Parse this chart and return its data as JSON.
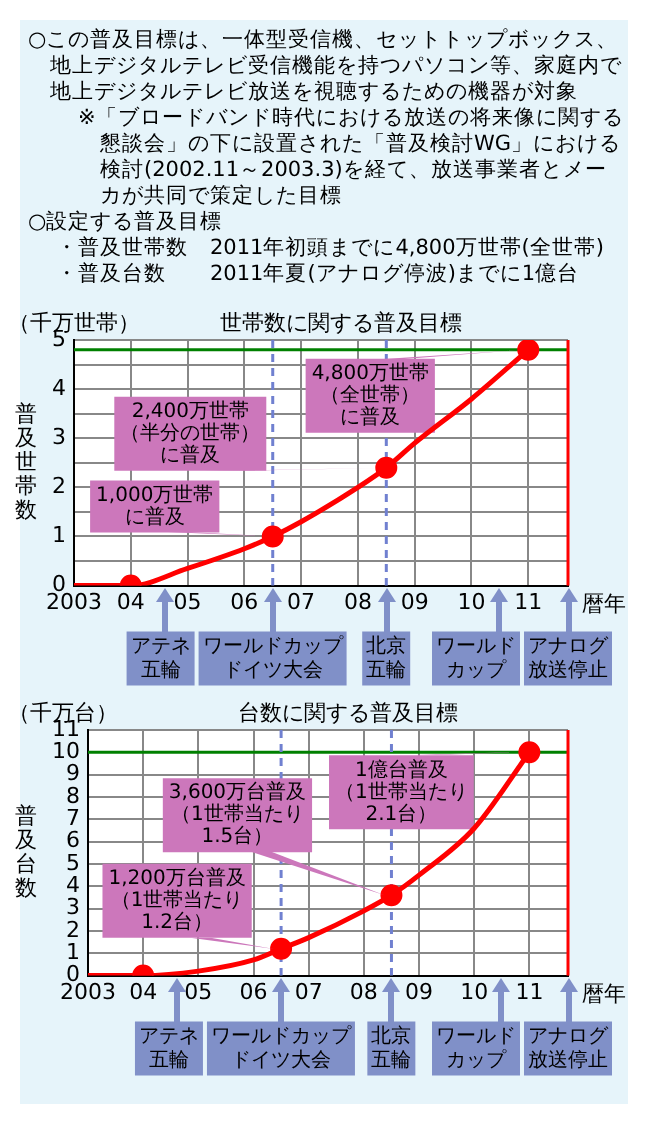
{
  "chart_data": [
    {
      "type": "other",
      "annotations": [
        "○この普及目標は、一体型受信機、セットトップボックス、地上デジタルテレビ受信機能を持つパソコン等、家庭内で地上デジタルテレビ放送を視聴するための機器が対象",
        "※「ブロードバンド時代における放送の将来像に関する懇談会」の下に設置された「普及検討WG」における検討(2002.11～2003.3)を経て、放送事業者とメーカが共同で策定した目標",
        "○設定する普及目標",
        "・普及世帯数　2011年初頭までに4,800万世帯(全世帯)",
        "・普及台数　　2011年夏(アナログ停波)までに1億台"
      ]
    },
    {
      "type": "line",
      "title": "世帯数に関する普及目標",
      "ylabel": "普及世帯数",
      "xlabel": "暦年",
      "xlim": [
        2003,
        2011.7
      ],
      "xticks": [
        {
          "value": 2003,
          "label": "2003"
        },
        {
          "value": 2004,
          "label": "04"
        },
        {
          "value": 2005,
          "label": "05"
        },
        {
          "value": 2006,
          "label": "06"
        },
        {
          "value": 2007,
          "label": "07"
        },
        {
          "value": 2008,
          "label": "08"
        },
        {
          "value": 2009,
          "label": "09"
        },
        {
          "value": 2010,
          "label": "10"
        },
        {
          "value": 2011,
          "label": "11"
        }
      ],
      "ylim": [
        0,
        5
      ],
      "yticks": [
        0,
        {
          "value": 0.5,
          "label": null
        },
        1,
        {
          "value": 1.5,
          "label": null
        },
        2,
        {
          "value": 2.5,
          "label": null
        },
        3,
        {
          "value": 3.5,
          "label": null
        },
        4,
        {
          "value": 4.5,
          "label": null
        },
        5
      ],
      "grid": true,
      "legend": false,
      "series": [
        {
          "type": "line",
          "color": "#ff0000",
          "marker": "none",
          "x": [
            2003,
            2004,
            2005,
            2006,
            2006.5,
            2007,
            2008,
            2008.5,
            2009,
            2010,
            2011
          ],
          "values": [
            0,
            0,
            0.35,
            0.75,
            1.0,
            1.3,
            2.0,
            2.4,
            2.9,
            3.8,
            4.8
          ]
        },
        {
          "type": "scatter",
          "color": "#ff0000",
          "marker": "circle",
          "x": [
            2004,
            2006.5,
            2008.5,
            2011
          ],
          "values": [
            0,
            1,
            2.4,
            4.8
          ]
        }
      ],
      "ref_lines": [
        {
          "axis": "y",
          "value": 4.8,
          "color": "#008000"
        },
        {
          "axis": "x",
          "value": 2006.5,
          "color": "#7080d0",
          "line_style": "dashed"
        },
        {
          "axis": "x",
          "value": 2008.5,
          "color": "#7080d0",
          "line_style": "dashed"
        },
        {
          "axis": "x",
          "value": 2011.7,
          "color": "#ff0000"
        }
      ],
      "annotations": [
        "（千万世帯）",
        {
          "text": "1,000万世帯に普及",
          "x": 2006.5,
          "y": 1
        },
        {
          "text": "2,400万世帯（半分の世帯）に普及",
          "x": 2008.5,
          "y": 2.4
        },
        {
          "text": "4,800万世帯（全世帯）に普及",
          "x": 2011,
          "y": 4.8
        },
        "アテネ五輪",
        "ワールドカップドイツ大会",
        "北京五輪",
        "ワールドカップ",
        "アナログ放送停止"
      ]
    },
    {
      "type": "line",
      "title": "台数に関する普及目標",
      "ylabel": "普及台数",
      "xlabel": "暦年",
      "xlim": [
        2003,
        2011.7
      ],
      "xticks": [
        {
          "value": 2003,
          "label": "2003"
        },
        {
          "value": 2004,
          "label": "04"
        },
        {
          "value": 2005,
          "label": "05"
        },
        {
          "value": 2006,
          "label": "06"
        },
        {
          "value": 2007,
          "label": "07"
        },
        {
          "value": 2008,
          "label": "08"
        },
        {
          "value": 2009,
          "label": "09"
        },
        {
          "value": 2010,
          "label": "10"
        },
        {
          "value": 2011,
          "label": "11"
        }
      ],
      "ylim": [
        0,
        11
      ],
      "yticks": [
        0,
        1,
        2,
        3,
        4,
        5,
        6,
        7,
        8,
        9,
        10,
        11
      ],
      "grid": true,
      "legend": false,
      "series": [
        {
          "type": "line",
          "color": "#ff0000",
          "marker": "none",
          "x": [
            2003,
            2004,
            2005,
            2006,
            2006.5,
            2007,
            2008,
            2008.5,
            2009,
            2010,
            2011
          ],
          "values": [
            0,
            0,
            0.2,
            0.7,
            1.2,
            1.7,
            2.9,
            3.6,
            4.5,
            6.6,
            10
          ]
        },
        {
          "type": "scatter",
          "color": "#ff0000",
          "marker": "circle",
          "x": [
            2004,
            2006.5,
            2008.5,
            2011
          ],
          "values": [
            0,
            1.2,
            3.6,
            10
          ]
        }
      ],
      "ref_lines": [
        {
          "axis": "y",
          "value": 10,
          "color": "#008000"
        },
        {
          "axis": "x",
          "value": 2006.5,
          "color": "#7080d0",
          "line_style": "dashed"
        },
        {
          "axis": "x",
          "value": 2008.5,
          "color": "#7080d0",
          "line_style": "dashed"
        },
        {
          "axis": "x",
          "value": 2011.7,
          "color": "#ff0000"
        }
      ],
      "annotations": [
        "（千万台）",
        {
          "text": "1,200万台普及（1世帯当たり1.2台）",
          "x": 2006.5,
          "y": 1.2
        },
        {
          "text": "3,600万台普及（1世帯当たり1.5台）",
          "x": 2008.5,
          "y": 3.6
        },
        {
          "text": "1億台普及（1世帯当たり2.1台）",
          "x": 2011,
          "y": 10
        },
        "アテネ五輪",
        "ワールドカップドイツ大会",
        "北京五輪",
        "ワールドカップ",
        "アナログ放送停止"
      ]
    }
  ]
}
